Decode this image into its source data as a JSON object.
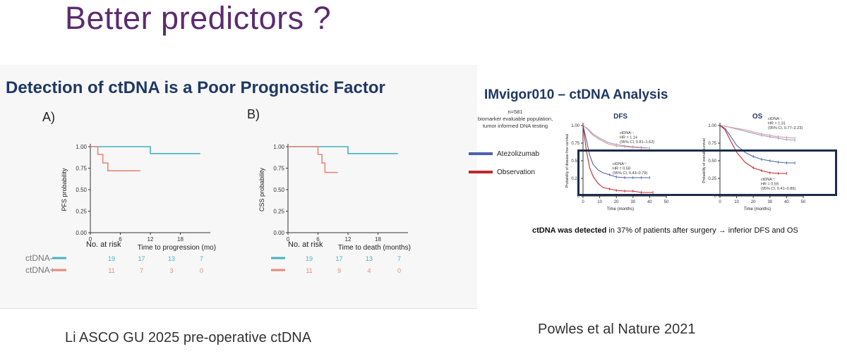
{
  "slide": {
    "title": "Better predictors ?",
    "left_heading": "Detection of ctDNA is a Poor Prognostic Factor",
    "left_citation": "Li ASCO GU 2025 pre-operative ctDNA",
    "right_heading": "IMvigor010 – ctDNA Analysis",
    "right_citation": "Powles et al Nature 2021",
    "right_caption_bold": "ctDNA was detected",
    "right_caption_rest": " in 37% of patients after surgery → inferior DFS and OS",
    "right_note": [
      "n=581",
      "biomarker evaluable population,",
      "tumor informed DNA testing"
    ],
    "legend": [
      {
        "label": "Atezolizumab",
        "color": "#4a63b0"
      },
      {
        "label": "Observation",
        "color": "#c0282d"
      }
    ]
  },
  "chart_data": [
    {
      "type": "line",
      "panel_label": "A)",
      "xlabel": "Time to progression (mo)",
      "ylabel": "PFS probability",
      "xlim": [
        0,
        24
      ],
      "ylim": [
        0,
        1
      ],
      "x_ticks": [
        "0",
        "6",
        "12",
        "18"
      ],
      "y_ticks": [
        "0.00",
        "0.25",
        "0.50",
        "0.75",
        "1.00"
      ],
      "series": [
        {
          "name": "ctDNA-",
          "color": "#45b3bf",
          "x": [
            0,
            12,
            12,
            22
          ],
          "y": [
            1.0,
            1.0,
            0.92,
            0.92
          ]
        },
        {
          "name": "ctDNA+",
          "color": "#e48a76",
          "x": [
            0,
            1.5,
            1.5,
            2.5,
            2.5,
            3.5,
            3.5,
            10
          ],
          "y": [
            1.0,
            1.0,
            0.91,
            0.91,
            0.81,
            0.81,
            0.72,
            0.72
          ]
        }
      ],
      "risk_table": {
        "title": "No. at risk",
        "rows": [
          {
            "label": "ctDNA-",
            "color": "#45b3bf",
            "values": [
              "19",
              "17",
              "13",
              "7"
            ]
          },
          {
            "label": "ctDNA+",
            "color": "#e48a76",
            "values": [
              "11",
              "7",
              "3",
              "0"
            ]
          }
        ]
      }
    },
    {
      "type": "line",
      "panel_label": "B)",
      "xlabel": "Time to death (months)",
      "ylabel": "CSS probability",
      "xlim": [
        0,
        24
      ],
      "ylim": [
        0,
        1
      ],
      "x_ticks": [
        "0",
        "6",
        "12",
        "18"
      ],
      "y_ticks": [
        "0.00",
        "0.25",
        "0.50",
        "0.75",
        "1.00"
      ],
      "series": [
        {
          "name": "ctDNA-",
          "color": "#45b3bf",
          "x": [
            0,
            12,
            12,
            22
          ],
          "y": [
            1.0,
            1.0,
            0.92,
            0.92
          ]
        },
        {
          "name": "ctDNA+",
          "color": "#e48a76",
          "x": [
            0,
            6,
            6,
            6.8,
            6.8,
            7.4,
            7.4,
            10
          ],
          "y": [
            1.0,
            1.0,
            0.91,
            0.91,
            0.81,
            0.81,
            0.7,
            0.7
          ]
        }
      ],
      "risk_table": {
        "title": "No. at risk",
        "rows": [
          {
            "label": "",
            "color": "#45b3bf",
            "values": [
              "19",
              "17",
              "13",
              "7"
            ]
          },
          {
            "label": "",
            "color": "#e48a76",
            "values": [
              "11",
              "9",
              "4",
              "0"
            ]
          }
        ]
      }
    },
    {
      "type": "line",
      "panel_label": "DFS",
      "xlabel": "Time (months)",
      "ylabel": "Probability of disease-free survival",
      "xlim": [
        0,
        50
      ],
      "ylim": [
        0,
        1
      ],
      "x_ticks": [
        "0",
        "10",
        "20",
        "30",
        "40",
        "50"
      ],
      "y_ticks": [
        "0",
        "0.25",
        "0.50",
        "0.75",
        "1.00"
      ],
      "annotations": [
        {
          "lines": [
            "ctDNA⁻:",
            "HR = 1.14",
            "(95% CI, 0.81–1.62)"
          ]
        },
        {
          "lines": [
            "ctDNA⁺:",
            "HR = 0.58",
            "(95% CI, 0.43–0.79)"
          ]
        }
      ],
      "series": [
        {
          "name": "Atezolizumab ctDNA⁻",
          "color": "#8d9cd0",
          "x": [
            0,
            3,
            6,
            10,
            15,
            20,
            25,
            30,
            35,
            40
          ],
          "y": [
            1.0,
            0.95,
            0.88,
            0.82,
            0.76,
            0.73,
            0.71,
            0.7,
            0.69,
            0.68
          ]
        },
        {
          "name": "Observation ctDNA⁻",
          "color": "#e09090",
          "x": [
            0,
            3,
            6,
            10,
            15,
            20,
            25,
            30,
            35,
            40
          ],
          "y": [
            1.0,
            0.94,
            0.86,
            0.8,
            0.74,
            0.71,
            0.7,
            0.69,
            0.68,
            0.68
          ]
        },
        {
          "name": "Atezolizumab ctDNA⁺",
          "color": "#4a63b0",
          "x": [
            0,
            2,
            4,
            6,
            9,
            12,
            16,
            20,
            25,
            30,
            35,
            40
          ],
          "y": [
            1.0,
            0.8,
            0.58,
            0.45,
            0.37,
            0.33,
            0.3,
            0.27,
            0.26,
            0.26,
            0.26,
            0.26
          ]
        },
        {
          "name": "Observation ctDNA⁺",
          "color": "#c0282d",
          "x": [
            0,
            2,
            4,
            6,
            9,
            12,
            16,
            20,
            25,
            30,
            35,
            42
          ],
          "y": [
            1.0,
            0.65,
            0.4,
            0.28,
            0.18,
            0.12,
            0.1,
            0.08,
            0.07,
            0.07,
            0.05,
            0.05
          ]
        }
      ]
    },
    {
      "type": "line",
      "panel_label": "OS",
      "xlabel": "Time (months)",
      "ylabel": "Probability of overall survival",
      "xlim": [
        0,
        50
      ],
      "ylim": [
        0,
        1
      ],
      "x_ticks": [
        "0",
        "10",
        "20",
        "30",
        "40",
        "50"
      ],
      "y_ticks": [
        "0",
        "0.25",
        "0.50",
        "0.75",
        "1.00"
      ],
      "annotations": [
        {
          "lines": [
            "ctDNA⁻:",
            "HR = 1.31",
            "(95% CI, 0.77–2.23)"
          ]
        },
        {
          "lines": [
            "ctDNA⁺:",
            "HR = 0.59",
            "(95% CI, 0.41–0.86)"
          ]
        }
      ],
      "series": [
        {
          "name": "Atezolizumab ctDNA⁻",
          "color": "#8d9cd0",
          "x": [
            0,
            5,
            10,
            15,
            20,
            25,
            30,
            35,
            40,
            45
          ],
          "y": [
            1.0,
            0.98,
            0.95,
            0.92,
            0.89,
            0.86,
            0.84,
            0.82,
            0.8,
            0.79
          ]
        },
        {
          "name": "Observation ctDNA⁻",
          "color": "#e09090",
          "x": [
            0,
            5,
            10,
            15,
            20,
            25,
            30,
            35,
            40,
            45
          ],
          "y": [
            1.0,
            0.98,
            0.96,
            0.94,
            0.91,
            0.88,
            0.86,
            0.84,
            0.83,
            0.82
          ]
        },
        {
          "name": "Atezolizumab ctDNA⁺",
          "color": "#4a63b0",
          "x": [
            0,
            3,
            6,
            10,
            15,
            20,
            25,
            30,
            35,
            40,
            45
          ],
          "y": [
            1.0,
            0.96,
            0.86,
            0.72,
            0.62,
            0.56,
            0.52,
            0.5,
            0.48,
            0.47,
            0.47
          ]
        },
        {
          "name": "Observation ctDNA⁺",
          "color": "#c0282d",
          "x": [
            0,
            3,
            6,
            10,
            15,
            20,
            25,
            30,
            35,
            40
          ],
          "y": [
            1.0,
            0.94,
            0.8,
            0.62,
            0.48,
            0.4,
            0.36,
            0.33,
            0.32,
            0.32
          ]
        }
      ]
    }
  ]
}
